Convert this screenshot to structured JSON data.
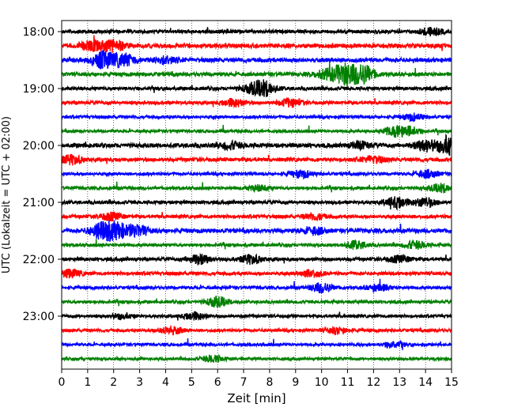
{
  "chart_data": {
    "type": "line",
    "title": "",
    "xlabel": "Zeit  [min]",
    "ylabel": "UTC (Lokalzeit = UTC + 02:00)",
    "xlim": [
      0,
      15
    ],
    "x_ticks": [
      "0",
      "1",
      "2",
      "3",
      "4",
      "5",
      "6",
      "7",
      "8",
      "9",
      "10",
      "11",
      "12",
      "13",
      "14",
      "15"
    ],
    "y_ticks": [
      "18:00",
      "19:00",
      "20:00",
      "21:00",
      "22:00",
      "23:00"
    ],
    "grid": "vertical-dotted",
    "trace_colors": [
      "#000000",
      "#ff0000",
      "#0000ff",
      "#008000"
    ],
    "traces": [
      {
        "start": "18:00",
        "color": "#000000",
        "amp": 0.16,
        "events": [
          [
            14.2,
            0.35
          ]
        ]
      },
      {
        "start": "18:15",
        "color": "#ff0000",
        "amp": 0.2,
        "events": [
          [
            1.2,
            0.45
          ],
          [
            2.0,
            0.55
          ]
        ]
      },
      {
        "start": "18:30",
        "color": "#0000ff",
        "amp": 0.2,
        "events": [
          [
            1.6,
            0.75
          ],
          [
            2.4,
            0.55
          ],
          [
            4.0,
            0.3
          ]
        ]
      },
      {
        "start": "18:45",
        "color": "#008000",
        "amp": 0.18,
        "events": [
          [
            10.9,
            0.95
          ],
          [
            11.6,
            0.85
          ],
          [
            10.2,
            0.4
          ]
        ]
      },
      {
        "start": "19:00",
        "color": "#000000",
        "amp": 0.16,
        "events": [
          [
            7.8,
            0.7
          ],
          [
            7.3,
            0.3
          ]
        ]
      },
      {
        "start": "19:15",
        "color": "#ff0000",
        "amp": 0.16,
        "events": [
          [
            6.6,
            0.35
          ],
          [
            8.8,
            0.35
          ]
        ]
      },
      {
        "start": "19:30",
        "color": "#0000ff",
        "amp": 0.14,
        "events": [
          [
            13.5,
            0.3
          ]
        ]
      },
      {
        "start": "19:45",
        "color": "#008000",
        "amp": 0.12,
        "events": [
          [
            12.8,
            0.45
          ],
          [
            13.4,
            0.4
          ]
        ]
      },
      {
        "start": "20:00",
        "color": "#000000",
        "amp": 0.2,
        "events": [
          [
            14.9,
            0.9
          ],
          [
            14.0,
            0.5
          ],
          [
            6.5,
            0.3
          ],
          [
            11.5,
            0.3
          ]
        ]
      },
      {
        "start": "20:15",
        "color": "#ff0000",
        "amp": 0.18,
        "events": [
          [
            0.4,
            0.4
          ],
          [
            12.0,
            0.3
          ]
        ]
      },
      {
        "start": "20:30",
        "color": "#0000ff",
        "amp": 0.14,
        "events": [
          [
            9.2,
            0.35
          ],
          [
            14.1,
            0.35
          ]
        ]
      },
      {
        "start": "20:45",
        "color": "#008000",
        "amp": 0.14,
        "events": [
          [
            14.6,
            0.4
          ],
          [
            7.6,
            0.25
          ]
        ]
      },
      {
        "start": "21:00",
        "color": "#000000",
        "amp": 0.16,
        "events": [
          [
            12.9,
            0.5
          ],
          [
            14.0,
            0.4
          ]
        ]
      },
      {
        "start": "21:15",
        "color": "#ff0000",
        "amp": 0.16,
        "events": [
          [
            1.9,
            0.35
          ],
          [
            9.7,
            0.3
          ]
        ]
      },
      {
        "start": "21:30",
        "color": "#0000ff",
        "amp": 0.2,
        "events": [
          [
            1.5,
            0.65
          ],
          [
            2.1,
            0.7
          ],
          [
            2.9,
            0.45
          ],
          [
            9.7,
            0.3
          ]
        ]
      },
      {
        "start": "21:45",
        "color": "#008000",
        "amp": 0.14,
        "events": [
          [
            11.3,
            0.35
          ],
          [
            13.6,
            0.35
          ]
        ]
      },
      {
        "start": "22:00",
        "color": "#000000",
        "amp": 0.16,
        "events": [
          [
            5.3,
            0.45
          ],
          [
            7.3,
            0.4
          ],
          [
            13.0,
            0.3
          ]
        ]
      },
      {
        "start": "22:15",
        "color": "#ff0000",
        "amp": 0.16,
        "events": [
          [
            0.3,
            0.35
          ],
          [
            9.6,
            0.3
          ]
        ]
      },
      {
        "start": "22:30",
        "color": "#0000ff",
        "amp": 0.14,
        "events": [
          [
            10.0,
            0.45
          ],
          [
            12.2,
            0.3
          ]
        ]
      },
      {
        "start": "22:45",
        "color": "#008000",
        "amp": 0.14,
        "events": [
          [
            6.0,
            0.45
          ]
        ]
      },
      {
        "start": "23:00",
        "color": "#000000",
        "amp": 0.14,
        "events": [
          [
            5.1,
            0.35
          ],
          [
            2.3,
            0.25
          ]
        ]
      },
      {
        "start": "23:15",
        "color": "#ff0000",
        "amp": 0.14,
        "events": [
          [
            4.2,
            0.35
          ],
          [
            10.6,
            0.3
          ]
        ]
      },
      {
        "start": "23:30",
        "color": "#0000ff",
        "amp": 0.12,
        "events": [
          [
            12.8,
            0.3
          ]
        ]
      },
      {
        "start": "23:45",
        "color": "#008000",
        "amp": 0.12,
        "events": [
          [
            5.8,
            0.3
          ]
        ]
      }
    ]
  }
}
